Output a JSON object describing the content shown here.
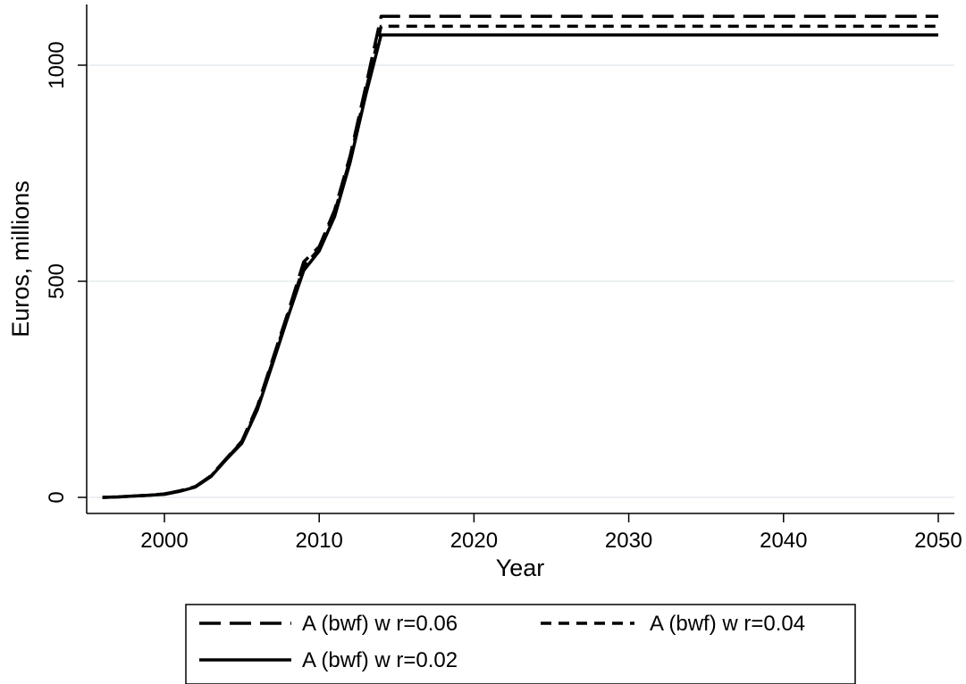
{
  "chart_data": {
    "type": "line",
    "title": "",
    "xlabel": "Year",
    "ylabel": "Euros, millions",
    "xlim": [
      1996,
      2050
    ],
    "ylim": [
      -20,
      1140
    ],
    "xticks": [
      2000,
      2010,
      2020,
      2030,
      2040,
      2050
    ],
    "yticks": [
      0,
      500,
      1000
    ],
    "grid": true,
    "legend_position": "bottom",
    "series": [
      {
        "name": "A (bwf) w r=0.06",
        "dash": "long-dash",
        "x": [
          1996,
          1997,
          1998,
          1999,
          2000,
          2001,
          2002,
          2003,
          2004,
          2005,
          2006,
          2007,
          2008,
          2009,
          2010,
          2011,
          2012,
          2013,
          2014,
          2050
        ],
        "y": [
          0,
          1,
          3,
          5,
          8,
          15,
          25,
          50,
          90,
          130,
          210,
          320,
          430,
          545,
          580,
          665,
          790,
          950,
          1113,
          1113
        ]
      },
      {
        "name": "A (bwf) w r=0.04",
        "dash": "short-dash",
        "x": [
          1996,
          1997,
          1998,
          1999,
          2000,
          2001,
          2002,
          2003,
          2004,
          2005,
          2006,
          2007,
          2008,
          2009,
          2010,
          2011,
          2012,
          2013,
          2014,
          2050
        ],
        "y": [
          0,
          1,
          3,
          5,
          8,
          15,
          25,
          49,
          89,
          128,
          206,
          315,
          425,
          535,
          575,
          660,
          782,
          940,
          1090,
          1090
        ]
      },
      {
        "name": "A (bwf) w r=0.02",
        "dash": "solid",
        "x": [
          1996,
          1997,
          1998,
          1999,
          2000,
          2001,
          2002,
          2003,
          2004,
          2005,
          2006,
          2007,
          2008,
          2009,
          2010,
          2011,
          2012,
          2013,
          2014,
          2050
        ],
        "y": [
          0,
          1,
          3,
          5,
          7,
          14,
          24,
          48,
          88,
          125,
          202,
          310,
          420,
          525,
          570,
          650,
          775,
          930,
          1070,
          1070
        ]
      }
    ]
  }
}
